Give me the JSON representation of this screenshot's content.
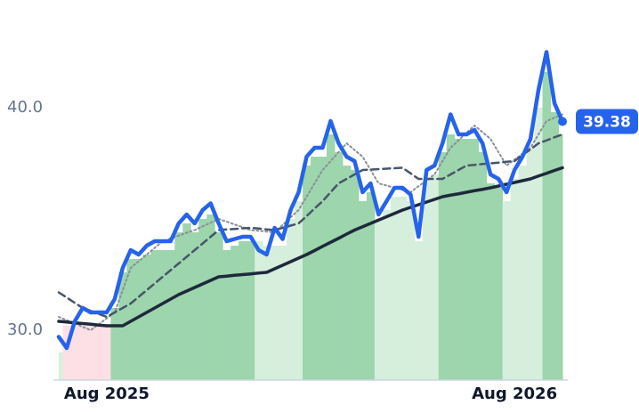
{
  "chart_data": {
    "type": "line",
    "categories": [
      null,
      null,
      null,
      null,
      null,
      null,
      "Aug 2025",
      null,
      null,
      null,
      null,
      null,
      null,
      null,
      null,
      null,
      null,
      null,
      null,
      null,
      null,
      null,
      null,
      null,
      null,
      null,
      null,
      null,
      null,
      null,
      null,
      null,
      null,
      null,
      null,
      null,
      null,
      null,
      null,
      null,
      null,
      null,
      null,
      null,
      null,
      null,
      null,
      null,
      null,
      null,
      null,
      null,
      null,
      null,
      null,
      null,
      null,
      "Aug 2026",
      null,
      null,
      null,
      null,
      null,
      null
    ],
    "ylim": [
      27.76,
      43.24
    ],
    "yticks": [
      {
        "value": 30,
        "label": "30.0"
      },
      {
        "value": 40,
        "label": "40.0"
      }
    ],
    "bars": {
      "values": [
        29.0,
        30.2,
        30.2,
        30.2,
        30.2,
        30.2,
        30.2,
        31.0,
        32.6,
        33.2,
        33.2,
        33.4,
        33.6,
        33.6,
        33.6,
        34.4,
        34.8,
        34.4,
        35.0,
        35.2,
        34.4,
        33.6,
        33.8,
        34.0,
        34.0,
        34.0,
        33.8,
        33.8,
        33.8,
        35.0,
        35.8,
        37.4,
        37.8,
        37.8,
        38.8,
        38.0,
        37.4,
        37.2,
        35.8,
        36.2,
        35.0,
        35.4,
        36.0,
        36.0,
        35.8,
        34.0,
        36.8,
        37.0,
        38.0,
        38.8,
        38.6,
        38.6,
        38.6,
        38.0,
        36.6,
        36.4,
        35.8,
        36.8,
        37.4,
        38.2,
        40.0,
        41.6,
        39.8,
        38.8
      ],
      "colors": [
        "#d6efdc",
        "#fde0e6",
        "#fde0e6",
        "#fde0e6",
        "#fde0e6",
        "#fde0e6",
        "#fde0e6",
        "#9dd5ad",
        "#9dd5ad",
        "#9dd5ad",
        "#9dd5ad",
        "#9dd5ad",
        "#9dd5ad",
        "#9dd5ad",
        "#9dd5ad",
        "#9dd5ad",
        "#9dd5ad",
        "#9dd5ad",
        "#9dd5ad",
        "#9dd5ad",
        "#9dd5ad",
        "#9dd5ad",
        "#9dd5ad",
        "#9dd5ad",
        "#9dd5ad",
        "#d6efdc",
        "#d6efdc",
        "#d6efdc",
        "#d6efdc",
        "#d6efdc",
        "#d6efdc",
        "#9dd5ad",
        "#9dd5ad",
        "#9dd5ad",
        "#9dd5ad",
        "#9dd5ad",
        "#9dd5ad",
        "#9dd5ad",
        "#9dd5ad",
        "#9dd5ad",
        "#d6efdc",
        "#d6efdc",
        "#d6efdc",
        "#d6efdc",
        "#d6efdc",
        "#d6efdc",
        "#d6efdc",
        "#d6efdc",
        "#9dd5ad",
        "#9dd5ad",
        "#9dd5ad",
        "#9dd5ad",
        "#9dd5ad",
        "#9dd5ad",
        "#9dd5ad",
        "#9dd5ad",
        "#d6efdc",
        "#d6efdc",
        "#d6efdc",
        "#d6efdc",
        "#d6efdc",
        "#9dd5ad",
        "#9dd5ad",
        "#9dd5ad"
      ]
    },
    "series": [
      {
        "color": "#8a8f98",
        "style": "dotted",
        "width": 2,
        "values": [
          30.6,
          30.45,
          30.3,
          30.15,
          30.0,
          30.27,
          30.53,
          30.8,
          31.8,
          32.8,
          33.1,
          33.4,
          33.7,
          34.0,
          34.13,
          34.25,
          34.38,
          34.5,
          34.67,
          34.83,
          35.0,
          34.88,
          34.75,
          34.63,
          34.5,
          34.47,
          34.43,
          34.4,
          34.73,
          35.07,
          35.4,
          36.0,
          36.6,
          37.2,
          37.6,
          38.0,
          38.4,
          38.1,
          37.8,
          37.2,
          36.6,
          36.5,
          36.4,
          36.3,
          36.2,
          36.47,
          36.73,
          37.0,
          37.6,
          38.2,
          38.53,
          38.87,
          39.2,
          38.9,
          38.6,
          38.0,
          37.4,
          37.67,
          37.93,
          38.2,
          38.8,
          39.4,
          39.55,
          39.7
        ]
      },
      {
        "color": "#475569",
        "style": "dashed",
        "width": 2.5,
        "values": [
          31.7,
          31.47,
          31.23,
          31.0,
          30.87,
          30.73,
          30.6,
          30.8,
          31.0,
          31.2,
          31.5,
          31.8,
          32.1,
          32.4,
          32.7,
          33.0,
          33.3,
          33.6,
          33.9,
          34.2,
          34.5,
          34.53,
          34.55,
          34.58,
          34.6,
          34.57,
          34.53,
          34.5,
          34.6,
          34.7,
          34.8,
          35.13,
          35.47,
          35.8,
          36.2,
          36.6,
          36.8,
          37.0,
          37.2,
          37.22,
          37.24,
          37.26,
          37.28,
          37.3,
          37.05,
          36.8,
          36.8,
          36.8,
          36.8,
          37.0,
          37.2,
          37.4,
          37.43,
          37.47,
          37.5,
          37.53,
          37.57,
          37.6,
          37.87,
          38.13,
          38.4,
          38.53,
          38.67,
          38.8
        ]
      },
      {
        "color": "#1e293b",
        "style": "solid",
        "width": 3.5,
        "values": [
          30.4,
          30.37,
          30.33,
          30.3,
          30.27,
          30.23,
          30.2,
          30.2,
          30.2,
          30.4,
          30.6,
          30.8,
          31.0,
          31.2,
          31.4,
          31.6,
          31.76,
          31.92,
          32.08,
          32.24,
          32.4,
          32.43,
          32.47,
          32.5,
          32.53,
          32.57,
          32.6,
          32.76,
          32.92,
          33.08,
          33.24,
          33.4,
          33.58,
          33.77,
          33.95,
          34.13,
          34.32,
          34.5,
          34.65,
          34.8,
          34.95,
          35.1,
          35.25,
          35.4,
          35.52,
          35.64,
          35.76,
          35.88,
          36.0,
          36.07,
          36.13,
          36.2,
          36.27,
          36.33,
          36.4,
          36.48,
          36.56,
          36.64,
          36.72,
          36.8,
          36.93,
          37.05,
          37.18,
          37.3
        ]
      },
      {
        "color": "#2563eb",
        "style": "solid",
        "width": 4.5,
        "last_label": true,
        "values": [
          29.7,
          29.2,
          30.4,
          31.0,
          30.8,
          30.8,
          30.8,
          31.4,
          32.8,
          33.6,
          33.4,
          33.8,
          34.0,
          34.0,
          34.0,
          34.8,
          35.2,
          34.8,
          35.4,
          35.7,
          34.8,
          34.0,
          34.1,
          34.2,
          34.2,
          33.6,
          33.4,
          34.6,
          34.1,
          35.4,
          36.2,
          37.8,
          38.2,
          38.2,
          39.4,
          38.4,
          37.8,
          37.6,
          36.2,
          36.6,
          35.2,
          35.8,
          36.4,
          36.4,
          36.1,
          34.2,
          37.2,
          37.4,
          38.4,
          39.7,
          38.8,
          38.8,
          39.0,
          38.4,
          37.0,
          36.8,
          36.2,
          37.2,
          37.8,
          38.6,
          40.8,
          42.5,
          40.2,
          39.38
        ]
      }
    ]
  }
}
